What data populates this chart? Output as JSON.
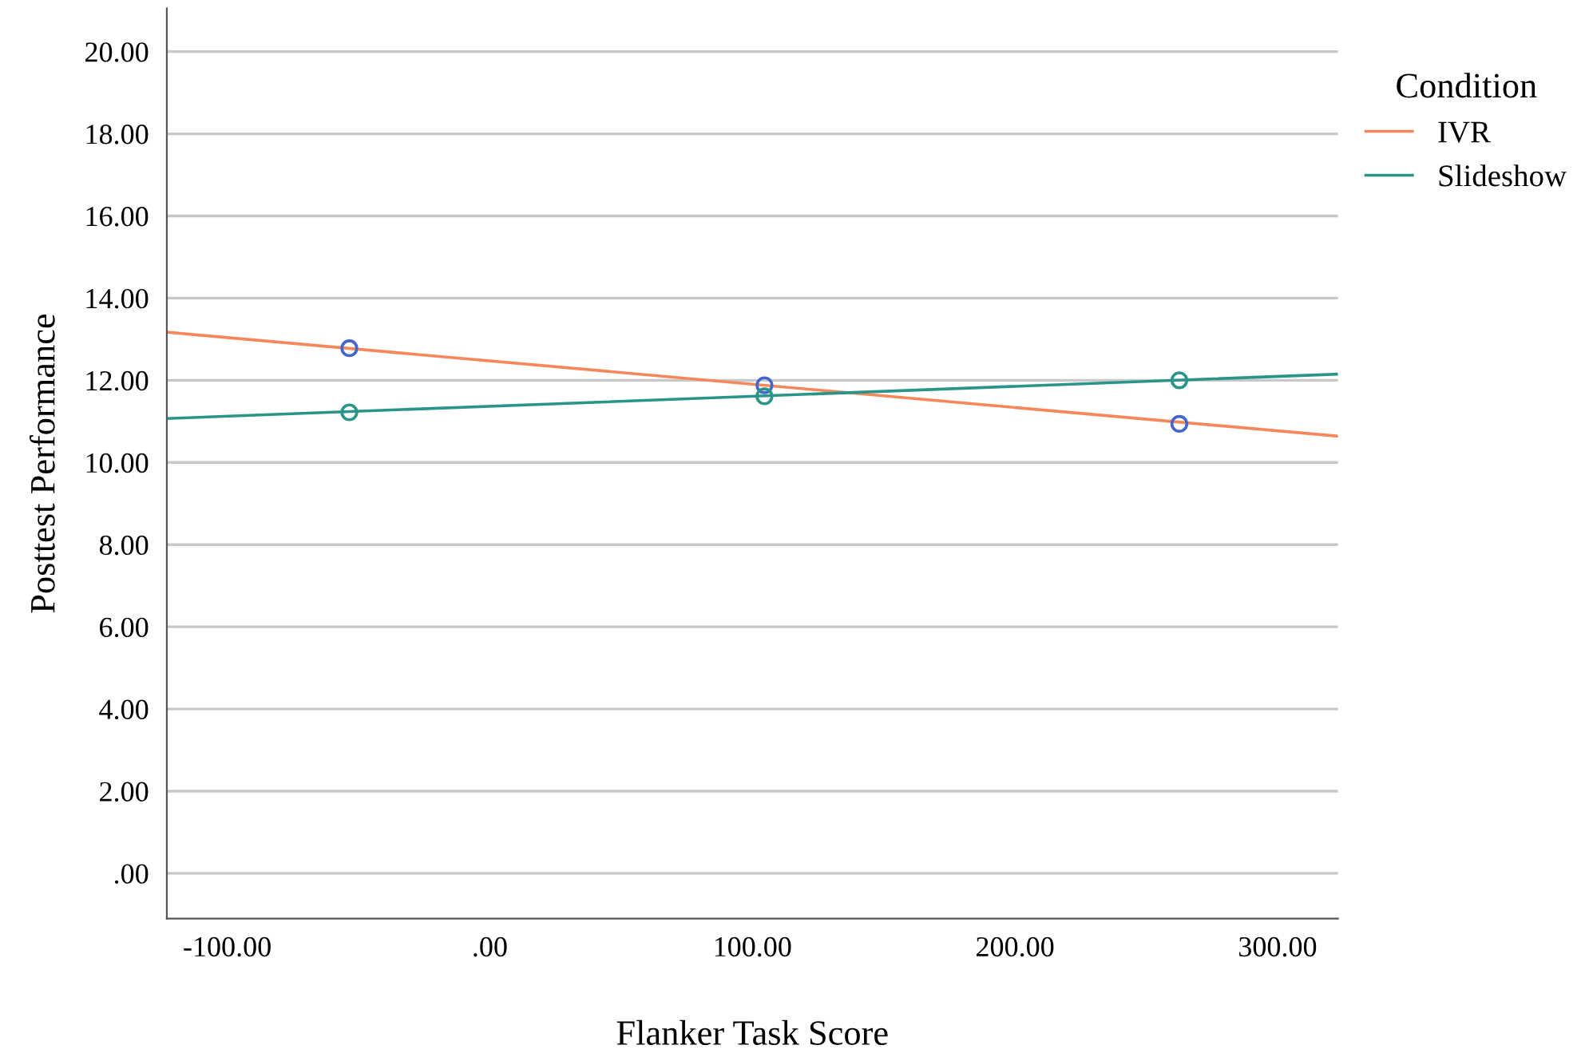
{
  "chart_data": {
    "type": "line",
    "xlabel": "Flanker Task Score",
    "ylabel": "Posttest Performance",
    "legend_title": "Condition",
    "xlim": [
      -123,
      323
    ],
    "ylim": [
      -1.1,
      21.05
    ],
    "xticks": [
      {
        "value": -100,
        "label": "-100.00"
      },
      {
        "value": 0,
        "label": ".00"
      },
      {
        "value": 100,
        "label": "100.00"
      },
      {
        "value": 200,
        "label": "200.00"
      },
      {
        "value": 300,
        "label": "300.00"
      }
    ],
    "yticks": [
      {
        "value": 0,
        "label": ".00"
      },
      {
        "value": 2,
        "label": "2.00"
      },
      {
        "value": 4,
        "label": "4.00"
      },
      {
        "value": 6,
        "label": "6.00"
      },
      {
        "value": 8,
        "label": "8.00"
      },
      {
        "value": 10,
        "label": "10.00"
      },
      {
        "value": 12,
        "label": "12.00"
      },
      {
        "value": 14,
        "label": "14.00"
      },
      {
        "value": 16,
        "label": "16.00"
      },
      {
        "value": 18,
        "label": "18.00"
      },
      {
        "value": 20,
        "label": "20.00"
      }
    ],
    "grid": "y",
    "legend": "right",
    "series": [
      {
        "name": "IVR",
        "color": "#f7875a",
        "x": [
          -123,
          323
        ],
        "values": [
          13.17,
          10.64
        ]
      },
      {
        "name": "Slideshow",
        "color": "#2a9488",
        "x": [
          -123,
          323
        ],
        "values": [
          11.07,
          12.15
        ]
      },
      {
        "type": "scatter",
        "marker": "circle",
        "color": "#4466cc",
        "x": [
          -53.5,
          104.6,
          262.6
        ],
        "values": [
          12.78,
          11.88,
          10.94
        ]
      },
      {
        "type": "scatter",
        "marker": "circle",
        "color": "#2a9488",
        "x": [
          -53.5,
          104.6,
          262.6
        ],
        "values": [
          11.22,
          11.61,
          12.0
        ]
      }
    ]
  }
}
